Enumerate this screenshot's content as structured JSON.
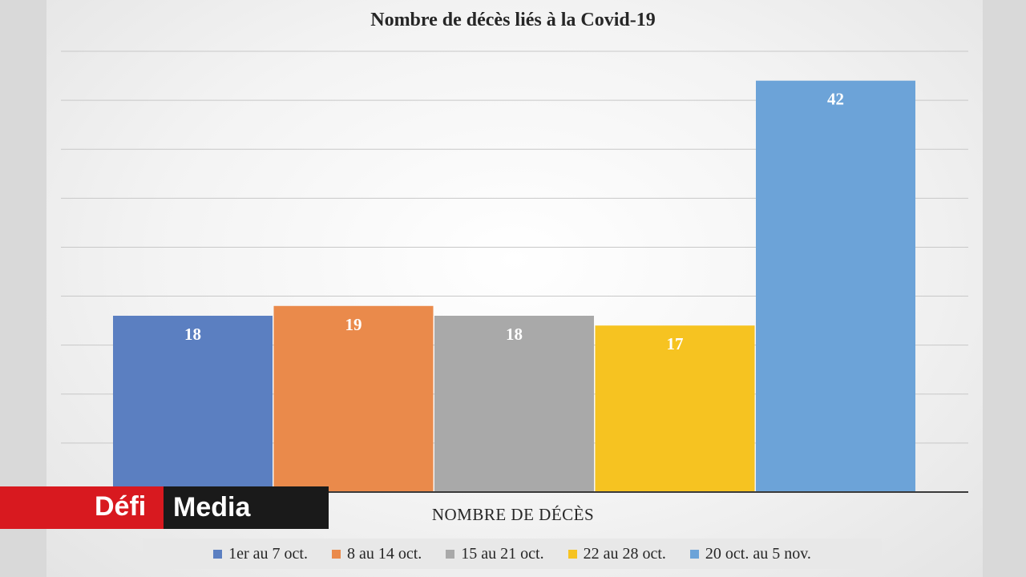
{
  "chart_data": {
    "type": "bar",
    "title": "Nombre de décès liés à la Covid-19",
    "xlabel": "NOMBRE DE DÉCÈS",
    "ylabel": "",
    "categories": [
      "1er au 7 oct.",
      "8 au 14 oct.",
      "15 au 21 oct.",
      "22 au 28 oct.",
      "20 oct. au 5 nov."
    ],
    "values": [
      18,
      19,
      18,
      17,
      42
    ],
    "colors": [
      "#5b7fc1",
      "#ea8a4b",
      "#a9a9a9",
      "#f6c321",
      "#6ca3d8"
    ],
    "ylim": [
      0,
      45
    ],
    "grid": true,
    "legend_position": "bottom"
  },
  "logo": {
    "part1": "Défi",
    "part2": "Media"
  }
}
